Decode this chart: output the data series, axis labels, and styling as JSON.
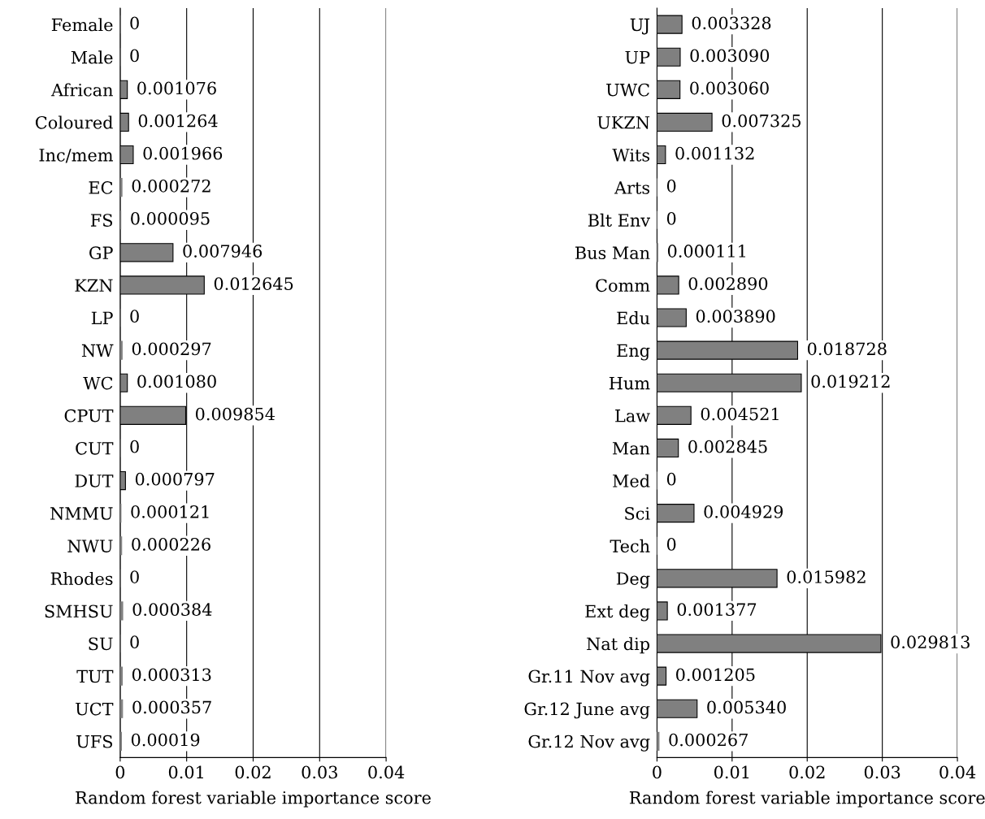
{
  "chart_data": [
    {
      "type": "bar",
      "orientation": "horizontal",
      "xlabel": "Random forest variable importance score",
      "xlim": [
        0,
        0.04
      ],
      "xticks": [
        0,
        0.01,
        0.02,
        0.03,
        0.04
      ],
      "grid": "x",
      "categories": [
        "Female",
        "Male",
        "African",
        "Coloured",
        "Inc/mem",
        "EC",
        "FS",
        "GP",
        "KZN",
        "LP",
        "NW",
        "WC",
        "CPUT",
        "CUT",
        "DUT",
        "NMMU",
        "NWU",
        "Rhodes",
        "SMHSU",
        "SU",
        "TUT",
        "UCT",
        "UFS"
      ],
      "series": [
        {
          "color": "#808080",
          "values": [
            0,
            0,
            0.001076,
            0.001264,
            0.001966,
            0.000272,
            9.5e-05,
            0.007946,
            0.012645,
            0,
            0.000297,
            0.00108,
            0.009854,
            0,
            0.000797,
            0.000121,
            0.000226,
            0,
            0.000384,
            0,
            0.000313,
            0.000357,
            0.00019
          ],
          "value_labels": [
            "0",
            "0",
            "0.001076",
            "0.001264",
            "0.001966",
            "0.000272",
            "0.000095",
            "0.007946",
            "0.012645",
            "0",
            "0.000297",
            "0.001080",
            "0.009854",
            "0",
            "0.000797",
            "0.000121",
            "0.000226",
            "0",
            "0.000384",
            "0",
            "0.000313",
            "0.000357",
            "0.00019"
          ]
        }
      ]
    },
    {
      "type": "bar",
      "orientation": "horizontal",
      "xlabel": "Random forest variable importance score",
      "xlim": [
        0,
        0.04
      ],
      "xticks": [
        0,
        0.01,
        0.02,
        0.03,
        0.04
      ],
      "grid": "x",
      "categories": [
        "UJ",
        "UP",
        "UWC",
        "UKZN",
        "Wits",
        "Arts",
        "Blt Env",
        "Bus Man",
        "Comm",
        "Edu",
        "Eng",
        "Hum",
        "Law",
        "Man",
        "Med",
        "Sci",
        "Tech",
        "Deg",
        "Ext deg",
        "Nat dip",
        "Gr.11 Nov avg",
        "Gr.12 June avg",
        "Gr.12 Nov avg"
      ],
      "series": [
        {
          "color": "#808080",
          "values": [
            0.003328,
            0.00309,
            0.00306,
            0.007325,
            0.001132,
            0,
            0,
            0.000111,
            0.00289,
            0.00389,
            0.018728,
            0.019212,
            0.004521,
            0.002845,
            0,
            0.004929,
            0,
            0.015982,
            0.001377,
            0.029813,
            0.001205,
            0.00534,
            0.000267
          ],
          "value_labels": [
            "0.003328",
            "0.003090",
            "0.003060",
            "0.007325",
            "0.001132",
            "0",
            "0",
            "0.000111",
            "0.002890",
            "0.003890",
            "0.018728",
            "0.019212",
            "0.004521",
            "0.002845",
            "0",
            "0.004929",
            "0",
            "0.015982",
            "0.001377",
            "0.029813",
            "0.001205",
            "0.005340",
            "0.000267"
          ]
        }
      ]
    }
  ]
}
